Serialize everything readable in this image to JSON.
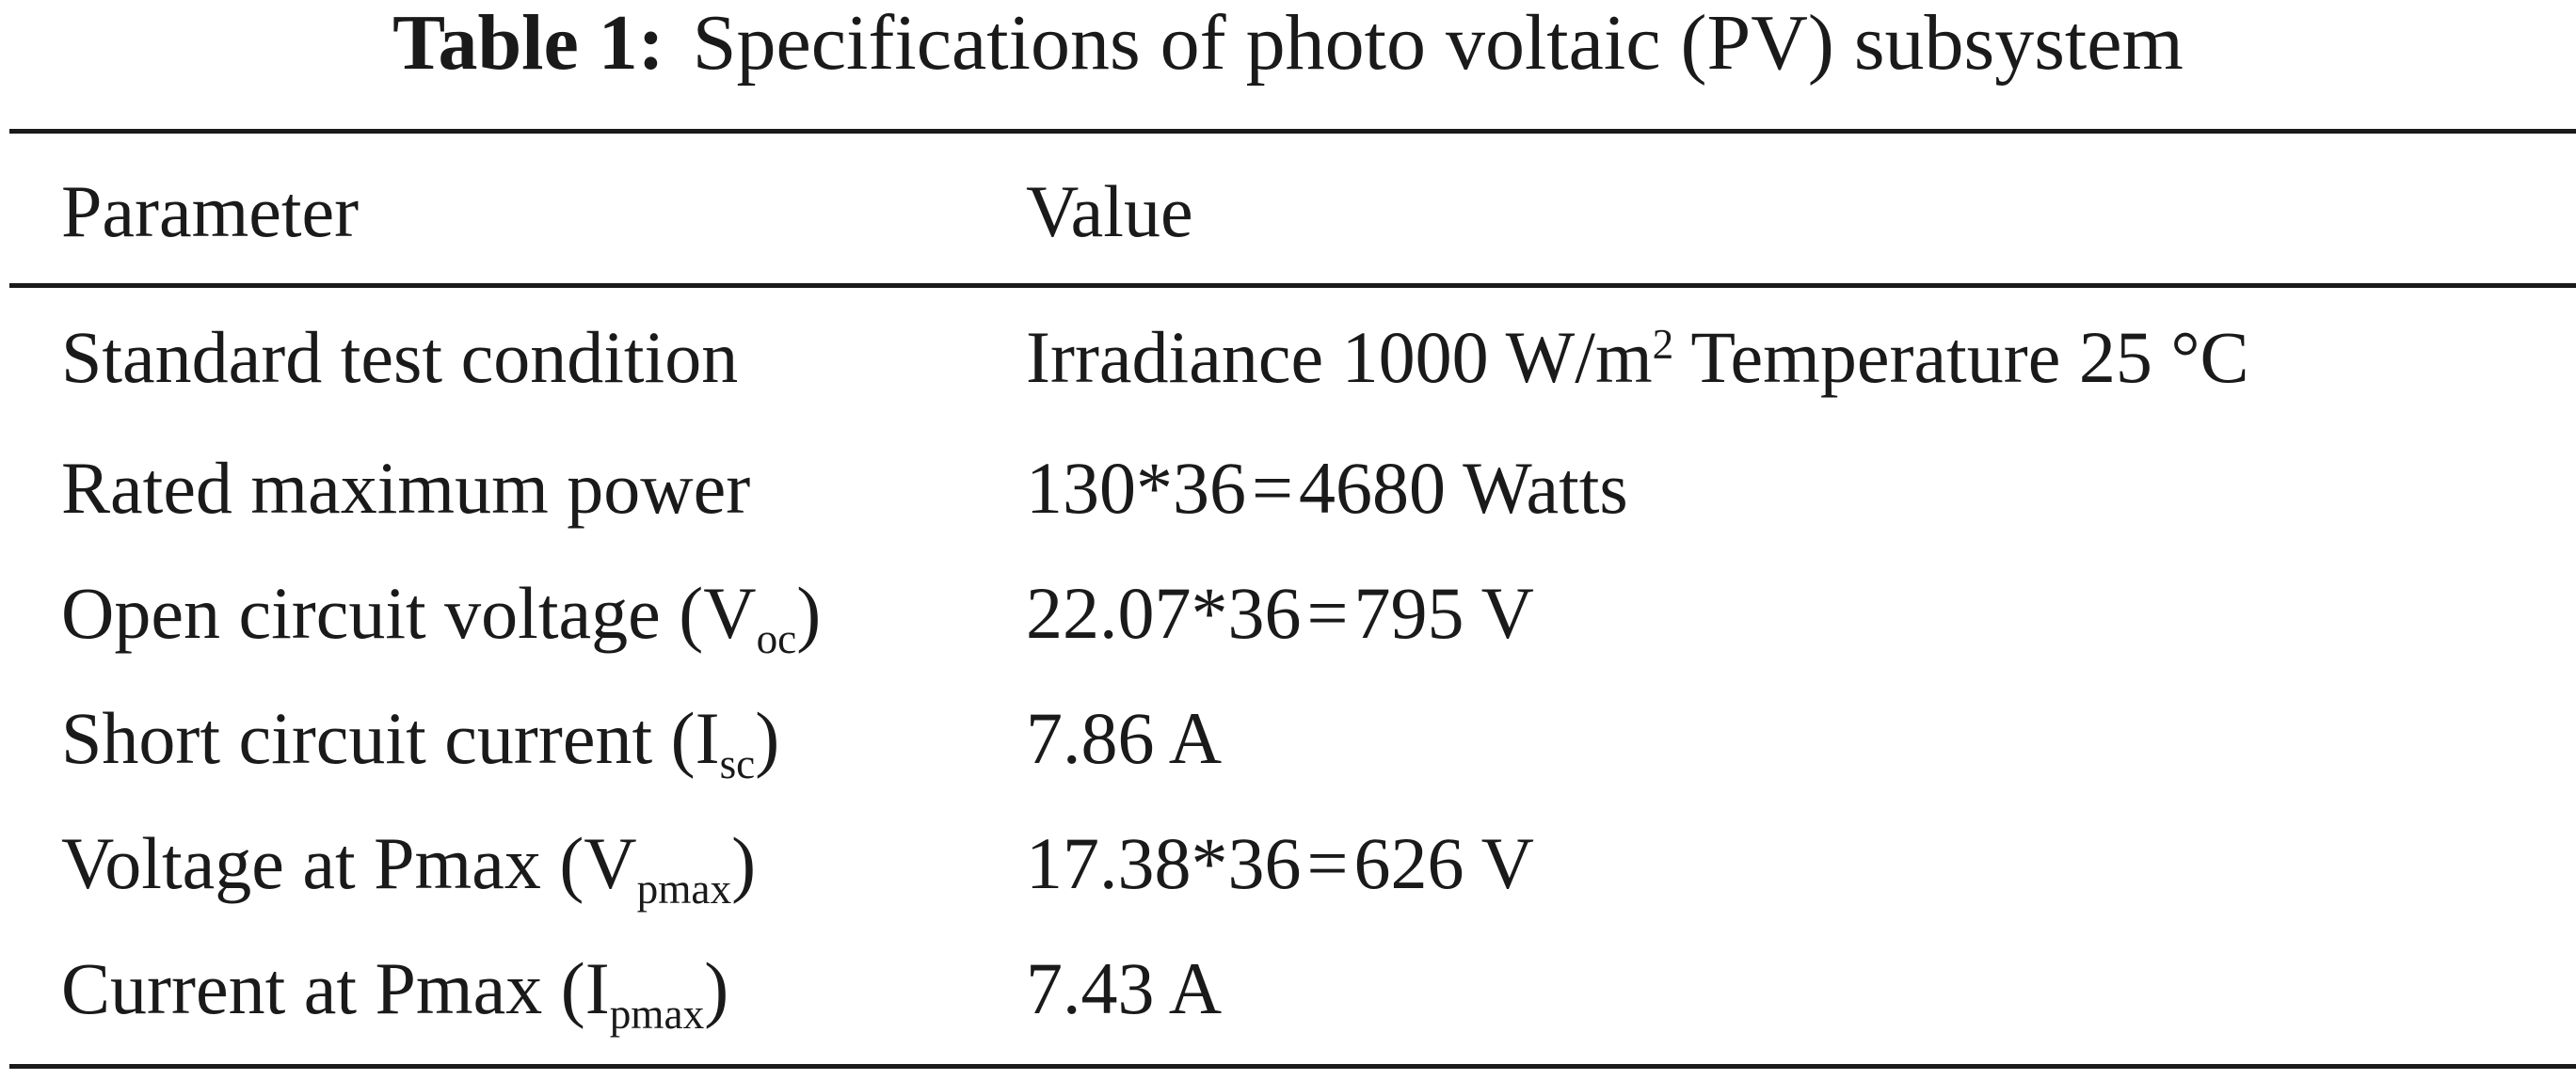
{
  "caption": {
    "label": "Table 1:",
    "title": "Specifications of photo voltaic (PV) subsystem"
  },
  "table": {
    "headers": [
      "Parameter",
      "Value"
    ],
    "rows": [
      {
        "param": {
          "text": "Standard test condition"
        },
        "value": {
          "pre": "Irradiance 1000 W/m",
          "sup": "2",
          "post": " Temperature 25 °C"
        }
      },
      {
        "param": {
          "text": "Rated maximum power"
        },
        "value": {
          "lhs": "130*36",
          "eq": "=",
          "rhs": "4680 Watts"
        }
      },
      {
        "param": {
          "pre": "Open circuit voltage (V",
          "sub": "oc",
          "post": ")"
        },
        "value": {
          "lhs": "22.07*36",
          "eq": "=",
          "rhs": "795 V"
        }
      },
      {
        "param": {
          "pre": "Short circuit current (I",
          "sub": "sc",
          "post": ")"
        },
        "value": {
          "text": "7.86 A"
        }
      },
      {
        "param": {
          "pre": "Voltage at Pmax (V",
          "sub": "pmax",
          "post": ")"
        },
        "value": {
          "lhs": "17.38*36",
          "eq": "=",
          "rhs": "626 V"
        }
      },
      {
        "param": {
          "pre": "Current at Pmax (I",
          "sub": "pmax",
          "post": ")"
        },
        "value": {
          "text": "7.43 A"
        }
      }
    ]
  }
}
